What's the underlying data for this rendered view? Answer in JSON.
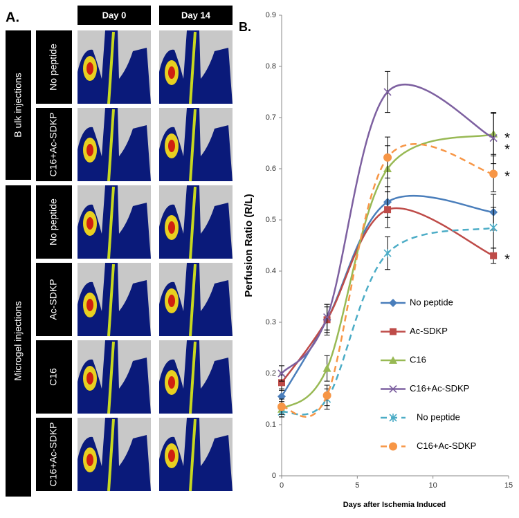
{
  "panel_a": {
    "label": "A.",
    "columns": [
      "Day 0",
      "Day 14"
    ],
    "groups": [
      {
        "label": "B ulk injections",
        "rows": [
          "No peptide",
          "C16+Ac-SDKP"
        ]
      },
      {
        "label": "Microgel injections",
        "rows": [
          "No peptide",
          "Ac-SDKP",
          "C16",
          "C16+Ac-SDKP"
        ]
      }
    ]
  },
  "chart_data": {
    "type": "line",
    "panel_label": "B.",
    "x_label": "Days after Ischemia Induced",
    "y_label": "Perfusion Ratio (R/L)",
    "x": [
      0,
      3,
      7,
      14
    ],
    "xlim": [
      0,
      15
    ],
    "xticks": [
      0,
      5,
      10,
      15
    ],
    "ylim": [
      0,
      0.9
    ],
    "yticks": [
      0,
      0.1,
      0.2,
      0.3,
      0.4,
      0.5,
      0.6,
      0.7,
      0.8,
      0.9
    ],
    "legend": "center",
    "series": [
      {
        "name": "No peptide",
        "color": "#4a7ebb",
        "marker": "diamond",
        "dashed": false,
        "values": [
          0.155,
          0.305,
          0.535,
          0.515
        ],
        "errors": [
          0.015,
          0.025,
          0.03,
          0.035
        ]
      },
      {
        "name": "Ac-SDKP",
        "color": "#be4b48",
        "marker": "square",
        "dashed": false,
        "values": [
          0.182,
          0.305,
          0.52,
          0.43
        ],
        "errors": [
          0.015,
          0.03,
          0.035,
          0.015
        ]
      },
      {
        "name": "C16",
        "color": "#98b954",
        "marker": "triangle",
        "dashed": false,
        "values": [
          0.13,
          0.21,
          0.6,
          0.668
        ],
        "errors": [
          0.015,
          0.025,
          0.045,
          0.04
        ]
      },
      {
        "name": "C16+Ac-SDKP",
        "color": "#7d60a0",
        "marker": "x",
        "dashed": false,
        "values": [
          0.2,
          0.31,
          0.75,
          0.66
        ],
        "errors": [
          0.015,
          0.025,
          0.04,
          0.05
        ]
      },
      {
        "name": "No peptide",
        "color": "#4bacc6",
        "marker": "asterisk",
        "dashed": true,
        "values": [
          0.125,
          0.15,
          0.435,
          0.485
        ],
        "errors": [
          0.01,
          0.02,
          0.032,
          0.04
        ]
      },
      {
        "name": "C16+Ac-SDKP",
        "color": "#f79646",
        "marker": "circle",
        "dashed": true,
        "values": [
          0.135,
          0.157,
          0.622,
          0.59
        ],
        "errors": [
          0.015,
          0.02,
          0.04,
          0.035
        ]
      }
    ],
    "annotations": [
      {
        "text": "*",
        "x": 14,
        "y": 0.665
      },
      {
        "text": "*",
        "x": 14,
        "y": 0.643
      },
      {
        "text": "*",
        "x": 14,
        "y": 0.59
      },
      {
        "text": "*",
        "x": 14,
        "y": 0.428
      }
    ]
  }
}
